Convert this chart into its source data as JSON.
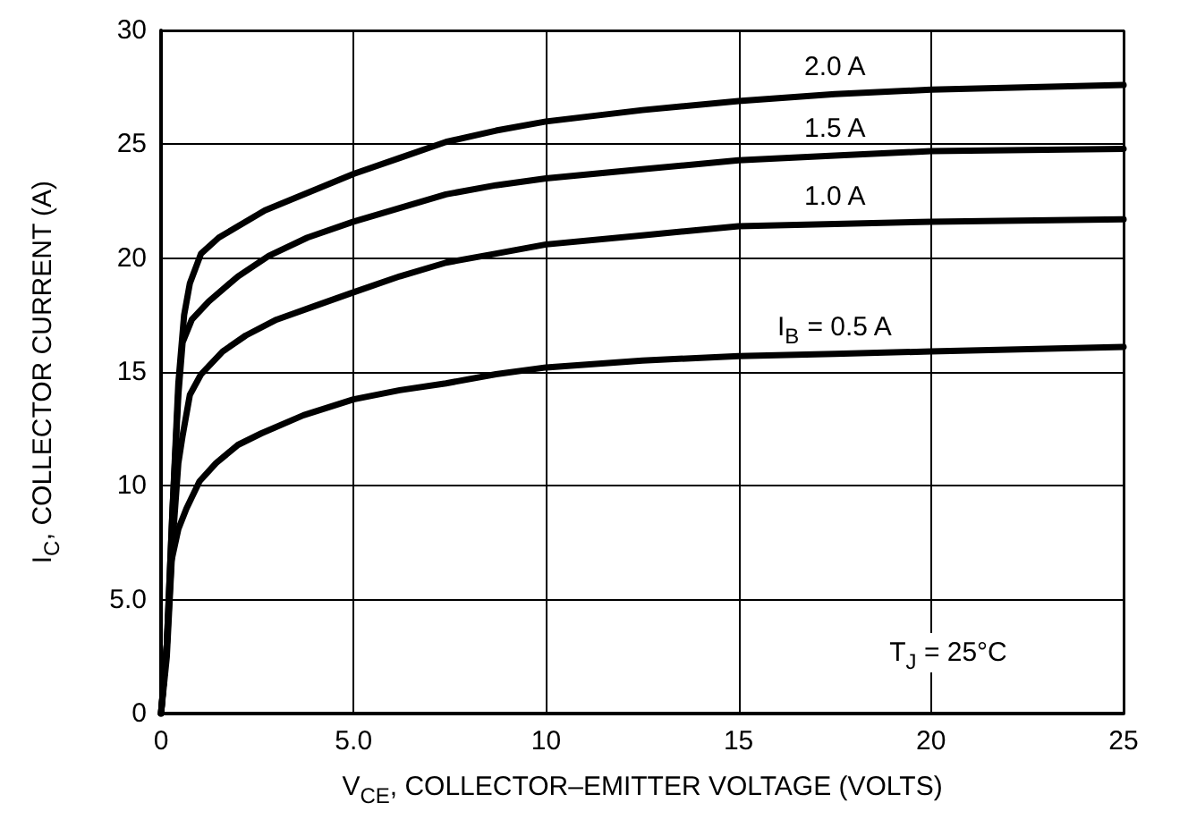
{
  "chart_data": {
    "type": "line",
    "xlabel": "V$_{CE}$, COLLECTOR–EMITTER VOLTAGE (VOLTS)",
    "ylabel": "I$_{C}$, COLLECTOR CURRENT (A)",
    "series": [
      {
        "name": "2.0 A",
        "color": "#000000",
        "x": [
          0,
          0.15,
          0.3,
          0.45,
          0.6,
          0.75,
          1.04,
          1.5,
          2.0,
          2.7,
          3.56,
          5,
          6.2,
          7.4,
          8.7,
          10,
          12.5,
          15,
          17.5,
          20,
          25
        ],
        "values": [
          0,
          3,
          9,
          14.5,
          17.5,
          18.9,
          20.2,
          20.9,
          21.4,
          22.1,
          22.7,
          23.7,
          24.4,
          25.1,
          25.6,
          26.0,
          26.5,
          26.9,
          27.2,
          27.4,
          27.6
        ]
      },
      {
        "name": "1.5 A",
        "color": "#000000",
        "x": [
          0,
          0.15,
          0.3,
          0.45,
          0.56,
          0.8,
          1.24,
          2.0,
          2.8,
          3.8,
          5,
          6.2,
          7.4,
          8.7,
          10,
          12.5,
          15,
          17.5,
          20,
          25
        ],
        "values": [
          0,
          3,
          9,
          14,
          16.3,
          17.3,
          18.1,
          19.2,
          20.1,
          20.9,
          21.6,
          22.2,
          22.8,
          23.2,
          23.5,
          23.9,
          24.3,
          24.5,
          24.7,
          24.8
        ]
      },
      {
        "name": "1.0 A",
        "color": "#000000",
        "x": [
          0,
          0.15,
          0.3,
          0.45,
          0.56,
          0.75,
          1.04,
          1.6,
          2.2,
          3.0,
          4.0,
          5,
          6.2,
          7.4,
          8.7,
          10,
          12.5,
          15,
          17.5,
          20,
          25
        ],
        "values": [
          0,
          2.5,
          7.5,
          11,
          12.2,
          14.0,
          14.9,
          15.9,
          16.6,
          17.3,
          17.9,
          18.5,
          19.2,
          19.8,
          20.2,
          20.6,
          21.0,
          21.4,
          21.5,
          21.6,
          21.7
        ]
      },
      {
        "name": "I$_{B}$ = 0.5 A",
        "color": "#000000",
        "x": [
          0,
          0.15,
          0.27,
          0.45,
          0.66,
          1.0,
          1.43,
          2.0,
          2.6,
          3.7,
          5,
          6.2,
          7.4,
          8.7,
          10,
          12.5,
          15,
          17.5,
          20,
          25
        ],
        "values": [
          0,
          3,
          6.7,
          8.1,
          9.0,
          10.2,
          11.0,
          11.8,
          12.3,
          13.1,
          13.8,
          14.2,
          14.5,
          14.9,
          15.2,
          15.5,
          15.7,
          15.8,
          15.9,
          16.1
        ]
      }
    ],
    "annotations": [
      "T$_{J}$ = 25°C"
    ],
    "xlim": [
      0,
      25
    ],
    "xticks": [
      0,
      {
        "value": 5,
        "label": "5.0"
      },
      10,
      15,
      20,
      25
    ],
    "ylim": [
      0,
      30
    ],
    "yticks": [
      0,
      {
        "value": 5,
        "label": "5.0"
      },
      10,
      15,
      20,
      25,
      30
    ],
    "grid": true,
    "marker": "none",
    "line_style": "solid"
  }
}
